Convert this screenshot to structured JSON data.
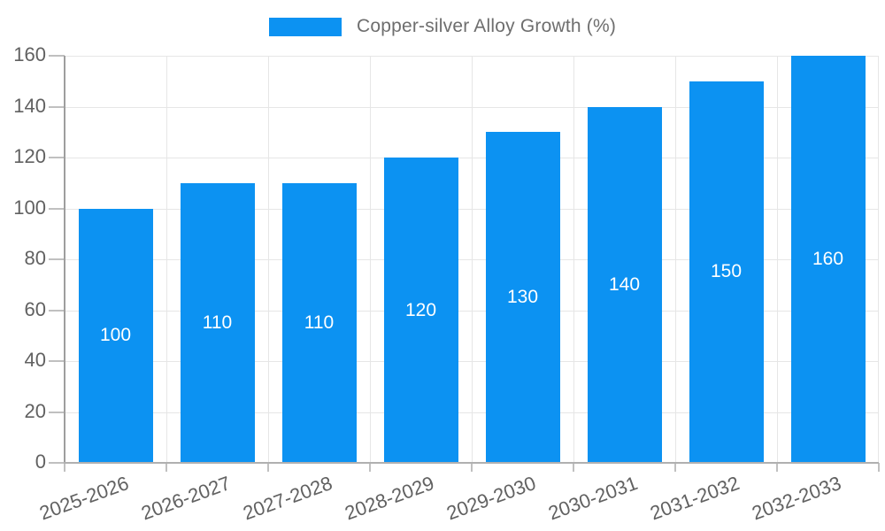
{
  "legend": {
    "label": "Copper-silver Alloy Growth (%)",
    "swatch_color": "#0c92f2"
  },
  "chart_data": {
    "type": "bar",
    "title": "Copper-silver Alloy Growth (%)",
    "categories": [
      "2025-2026",
      "2026-2027",
      "2027-2028",
      "2028-2029",
      "2029-2030",
      "2030-2031",
      "2031-2032",
      "2032-2033"
    ],
    "values": [
      100,
      110,
      110,
      120,
      130,
      140,
      150,
      160
    ],
    "value_labels": [
      "100",
      "110",
      "110",
      "120",
      "130",
      "140",
      "150",
      "160"
    ],
    "yticks": [
      "0",
      "20",
      "40",
      "60",
      "80",
      "100",
      "120",
      "140",
      "160"
    ],
    "ylim": [
      0,
      160
    ],
    "xlabel": "",
    "ylabel": "",
    "grid": true,
    "legend_position": "top-center",
    "value_label_position": "inside-center",
    "colors": {
      "bar": "#0c92f2",
      "value_label": "#ffffff",
      "axis_text": "#616161",
      "legend_text": "#6e6e6e",
      "gridline": "#e6e6e6",
      "axis_line": "#b0b0b0",
      "tick": "#c0c0c0"
    }
  }
}
